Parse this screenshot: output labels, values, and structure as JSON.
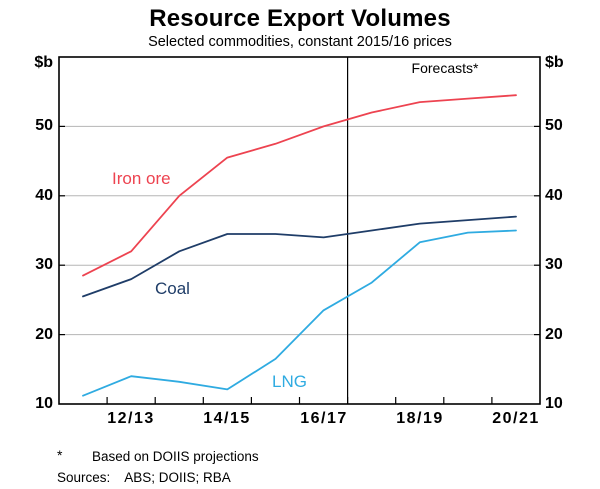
{
  "title": "Resource Export Volumes",
  "subtitle": "Selected commodities, constant 2015/16 prices",
  "unit_label_left": "$b",
  "unit_label_right": "$b",
  "forecast_label": "Forecasts*",
  "footnote": {
    "marker": "*",
    "text": "Based on DOIIS projections"
  },
  "sources": {
    "label": "Sources:",
    "list": "ABS; DOIIS; RBA"
  },
  "colors": {
    "iron_ore": "#ed4350",
    "coal": "#1f3d68",
    "lng": "#2fabe1",
    "gridline": "#b5b5b5",
    "axis": "#000000",
    "background": "#ffffff"
  },
  "chart_data": {
    "type": "line",
    "title": "Resource Export Volumes",
    "subtitle": "Selected commodities, constant 2015/16 prices",
    "ylabel": "$b",
    "ylim": [
      10,
      60
    ],
    "y_ticks": [
      10,
      20,
      30,
      40,
      50
    ],
    "grid": "horizontal",
    "x": [
      "11/12",
      "12/13",
      "13/14",
      "14/15",
      "15/16",
      "16/17",
      "17/18",
      "18/19",
      "19/20",
      "20/21"
    ],
    "x_shown_tick_indices": [
      1,
      3,
      5,
      7,
      9
    ],
    "forecast_boundary_tick": 6,
    "annotations": [
      "Forecasts*"
    ],
    "legend_position": "inline-labels",
    "series": [
      {
        "name": "Iron ore",
        "color": "#ed4350",
        "values": [
          28.5,
          32,
          40,
          45.5,
          47.5,
          50,
          52,
          53.5,
          54,
          54.5
        ]
      },
      {
        "name": "Coal",
        "color": "#1f3d68",
        "values": [
          25.5,
          28,
          32,
          34.5,
          34.5,
          34,
          35,
          36,
          36.5,
          37
        ]
      },
      {
        "name": "LNG",
        "color": "#2fabe1",
        "values": [
          11.2,
          14,
          13.2,
          12.1,
          16.5,
          23.5,
          27.5,
          33.3,
          34.7,
          35
        ]
      }
    ]
  }
}
